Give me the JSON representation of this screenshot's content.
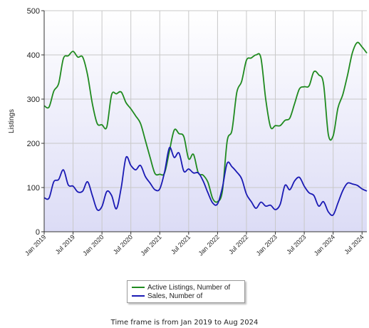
{
  "chart_data": {
    "type": "line",
    "ylabel": "Listings",
    "ylim": [
      0,
      500
    ],
    "yticks": [
      "0",
      "100",
      "200",
      "300",
      "400",
      "500"
    ],
    "xticks": [
      "Jan 2019",
      "Jul 2019",
      "Jan 2020",
      "Jul 2020",
      "Jan 2021",
      "Jul 2021",
      "Jan 2022",
      "Jul 2022",
      "Jan 2023",
      "Jul 2023",
      "Jan 2024",
      "Jul 2024"
    ],
    "grid": true,
    "legend_position": "bottom-center",
    "x": [
      "2019-01",
      "2019-02",
      "2019-03",
      "2019-04",
      "2019-05",
      "2019-06",
      "2019-07",
      "2019-08",
      "2019-09",
      "2019-10",
      "2019-11",
      "2019-12",
      "2020-01",
      "2020-02",
      "2020-03",
      "2020-04",
      "2020-05",
      "2020-06",
      "2020-07",
      "2020-08",
      "2020-09",
      "2020-10",
      "2020-11",
      "2020-12",
      "2021-01",
      "2021-02",
      "2021-03",
      "2021-04",
      "2021-05",
      "2021-06",
      "2021-07",
      "2021-08",
      "2021-09",
      "2021-10",
      "2021-11",
      "2021-12",
      "2022-01",
      "2022-02",
      "2022-03",
      "2022-04",
      "2022-05",
      "2022-06",
      "2022-07",
      "2022-08",
      "2022-09",
      "2022-10",
      "2022-11",
      "2022-12",
      "2023-01",
      "2023-02",
      "2023-03",
      "2023-04",
      "2023-05",
      "2023-06",
      "2023-07",
      "2023-08",
      "2023-09",
      "2023-10",
      "2023-11",
      "2023-12",
      "2024-01",
      "2024-02",
      "2024-03",
      "2024-04",
      "2024-05",
      "2024-06",
      "2024-07",
      "2024-08"
    ],
    "series": [
      {
        "name": "Active Listings, Number of",
        "color": "#1f8a1f",
        "values": [
          285,
          282,
          318,
          335,
          392,
          398,
          408,
          395,
          395,
          355,
          290,
          245,
          242,
          237,
          310,
          312,
          316,
          292,
          278,
          262,
          245,
          207,
          168,
          132,
          130,
          133,
          182,
          230,
          222,
          215,
          165,
          175,
          133,
          128,
          112,
          75,
          68,
          92,
          205,
          230,
          315,
          340,
          388,
          393,
          400,
          393,
          300,
          237,
          240,
          240,
          252,
          257,
          290,
          323,
          328,
          330,
          362,
          355,
          335,
          220,
          217,
          280,
          310,
          355,
          405,
          428,
          418,
          404
        ]
      },
      {
        "name": "Sales, Number of",
        "color": "#1a1ab4",
        "values": [
          77,
          76,
          113,
          118,
          140,
          106,
          103,
          90,
          92,
          113,
          82,
          50,
          57,
          91,
          82,
          52,
          100,
          168,
          150,
          140,
          150,
          125,
          110,
          95,
          97,
          135,
          190,
          168,
          178,
          137,
          142,
          133,
          133,
          115,
          88,
          65,
          63,
          100,
          155,
          147,
          135,
          120,
          85,
          68,
          53,
          67,
          58,
          60,
          50,
          62,
          105,
          95,
          115,
          123,
          103,
          88,
          82,
          58,
          68,
          45,
          38,
          65,
          93,
          110,
          108,
          105,
          97,
          92
        ]
      }
    ]
  },
  "footnote": "Time frame is from Jan 2019 to Aug 2024"
}
